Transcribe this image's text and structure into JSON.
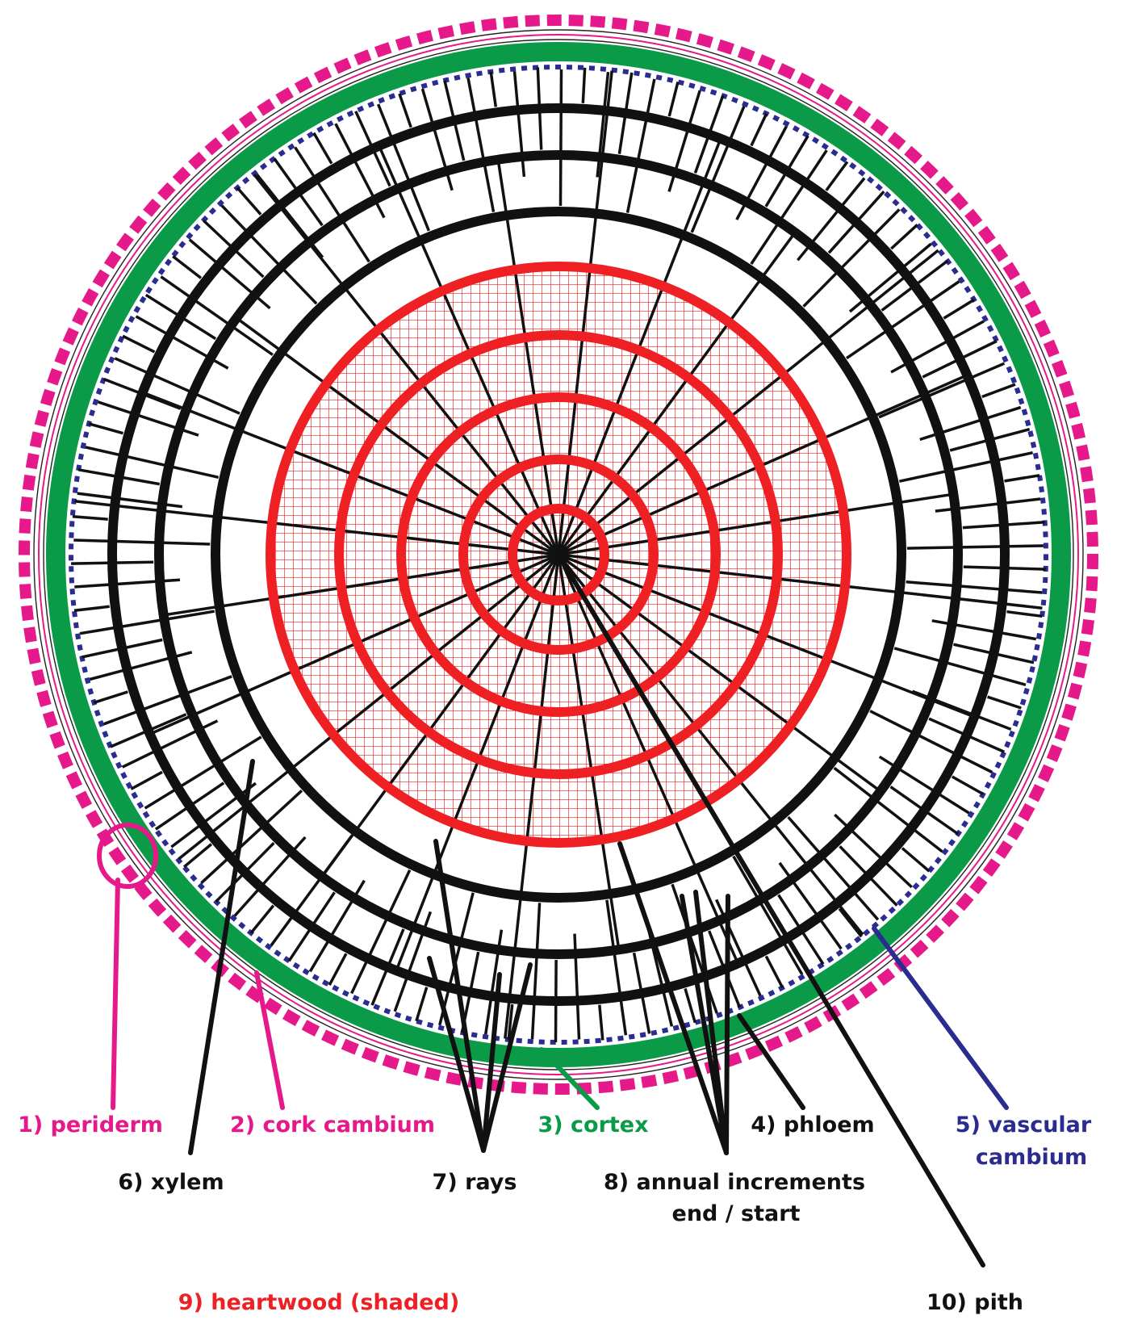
{
  "colors": {
    "periderm": "#e6198a",
    "cork_cambium": "#e6198a",
    "cortex": "#0a9a48",
    "vascular_cambium": "#2b2c8f",
    "xylem_rings": "#111111",
    "heartwood": "#ee2024",
    "rays": "#111111",
    "leaders": {
      "periderm": "#e6198a",
      "cork_cambium": "#e6198a",
      "cortex": "#0a9a48",
      "phloem": "#111111",
      "vascular_cambium": "#2b2c8f",
      "xylem": "#111111",
      "rays": "#111111",
      "annual_increments": "#111111",
      "pith": "#111111"
    }
  },
  "labels": {
    "periderm": "1) periderm",
    "cork_cambium": "2) cork cambium",
    "cortex": "3) cortex",
    "phloem": "4) phloem",
    "vascular_cambium_line1": "5) vascular",
    "vascular_cambium_line2": "cambium",
    "xylem": "6) xylem",
    "rays": "7) rays",
    "annual_increments_line1": "8) annual increments",
    "annual_increments_line2": "end / start",
    "heartwood": "9) heartwood (shaded)",
    "pith": "10) pith"
  },
  "structure": {
    "heartwood_rings": 5,
    "sapwood_rings": 3,
    "long_rays": 24,
    "short_rays": 130
  }
}
